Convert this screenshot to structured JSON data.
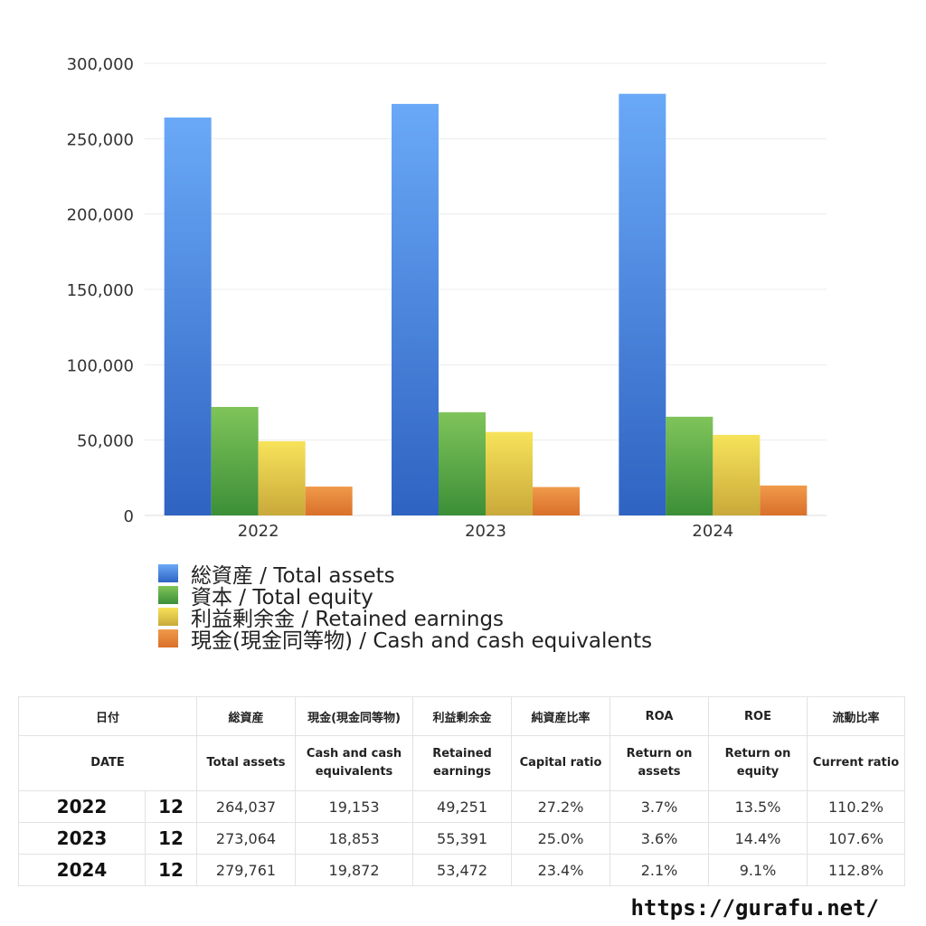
{
  "chart_data": {
    "type": "bar",
    "categories": [
      "2022",
      "2023",
      "2024"
    ],
    "series": [
      {
        "name": "総資産 / Total assets",
        "values": [
          264037,
          273064,
          279761
        ],
        "color_top": "#6aa9f7",
        "color_bottom": "#2f63c2"
      },
      {
        "name": "資本 / Total equity",
        "values": [
          72000,
          68500,
          65500
        ],
        "color_top": "#7fc45a",
        "color_bottom": "#3c8f37"
      },
      {
        "name": "利益剰余金 / Retained earnings",
        "values": [
          49251,
          55391,
          53472
        ],
        "color_top": "#f7e35a",
        "color_bottom": "#c9a93a"
      },
      {
        "name": "現金(現金同等物) / Cash and cash equivalents",
        "values": [
          19153,
          18853,
          19872
        ],
        "color_top": "#f09a4a",
        "color_bottom": "#d9702a"
      }
    ],
    "ylim": [
      0,
      300000
    ],
    "yticks": [
      "0",
      "50,000",
      "100,000",
      "150,000",
      "200,000",
      "250,000",
      "300,000"
    ],
    "grid": true,
    "legend_position": "bottom-left"
  },
  "table": {
    "headers_jp": [
      "日付",
      "総資産",
      "現金(現金同等物)",
      "利益剰余金",
      "純資産比率",
      "ROA",
      "ROE",
      "流動比率"
    ],
    "headers_en": [
      "DATE",
      "Total assets",
      "Cash and cash equivalents",
      "Retained earnings",
      "Capital ratio",
      "Return on assets",
      "Return on equity",
      "Current ratio"
    ],
    "rows": [
      {
        "year": "2022",
        "month": "12",
        "cells": [
          "264,037",
          "19,153",
          "49,251",
          "27.2%",
          "3.7%",
          "13.5%",
          "110.2%"
        ]
      },
      {
        "year": "2023",
        "month": "12",
        "cells": [
          "273,064",
          "18,853",
          "55,391",
          "25.0%",
          "3.6%",
          "14.4%",
          "107.6%"
        ]
      },
      {
        "year": "2024",
        "month": "12",
        "cells": [
          "279,761",
          "19,872",
          "53,472",
          "23.4%",
          "2.1%",
          "9.1%",
          "112.8%"
        ]
      }
    ]
  },
  "footer": {
    "url": "https://gurafu.net/"
  }
}
